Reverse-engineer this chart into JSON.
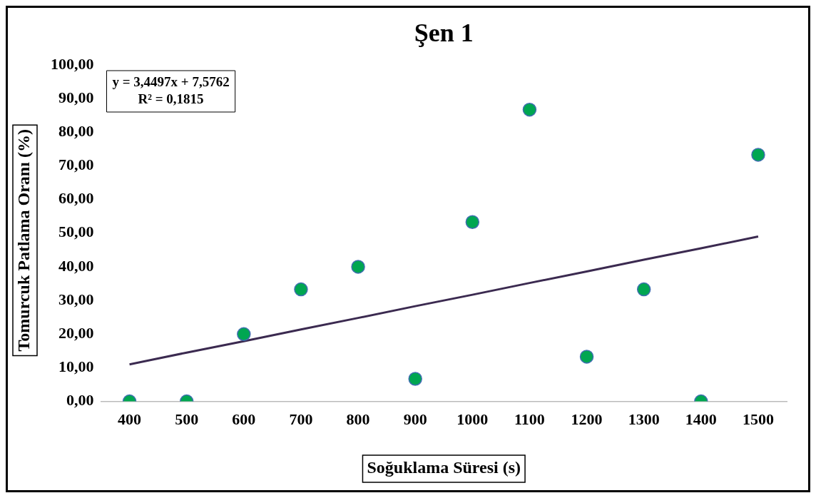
{
  "chart_data": {
    "type": "scatter",
    "title": "Şen 1",
    "xlabel": "Soğuklama Süresi (s)",
    "ylabel": "Tomurcuk Patlama Oranı (%)",
    "categories": [
      "400",
      "500",
      "600",
      "700",
      "800",
      "900",
      "1000",
      "1100",
      "1200",
      "1300",
      "1400",
      "1500"
    ],
    "series": [
      {
        "type": "scatter",
        "color": "#00a651",
        "marker": "circle",
        "values": [
          0,
          0,
          20,
          33.3,
          40,
          6.7,
          53.3,
          86.7,
          13.3,
          33.3,
          0,
          73.3
        ]
      },
      {
        "type": "line",
        "color": "#3b2a50",
        "marker": "none",
        "values": [
          11.0,
          14.5,
          17.9,
          21.4,
          24.8,
          28.3,
          31.7,
          35.2,
          38.6,
          42.1,
          45.5,
          49.0
        ]
      }
    ],
    "ylim": [
      0,
      100
    ],
    "yticks": [
      {
        "value": 0,
        "label": "0,00"
      },
      {
        "value": 10,
        "label": "10,00"
      },
      {
        "value": 20,
        "label": "20,00"
      },
      {
        "value": 30,
        "label": "30,00"
      },
      {
        "value": 40,
        "label": "40,00"
      },
      {
        "value": 50,
        "label": "50,00"
      },
      {
        "value": 60,
        "label": "60,00"
      },
      {
        "value": 70,
        "label": "70,00"
      },
      {
        "value": 80,
        "label": "80,00"
      },
      {
        "value": 90,
        "label": "90,00"
      },
      {
        "value": 100,
        "label": "100,00"
      }
    ],
    "annotations": [
      "y = 3,4497x + 7,5762",
      "R² = 0,1815"
    ],
    "grid": false,
    "legend": false,
    "line_style": "solid"
  }
}
